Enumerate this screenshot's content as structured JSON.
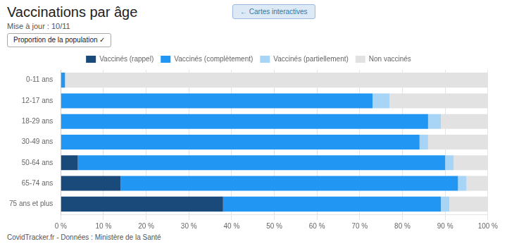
{
  "chart_data": {
    "type": "bar",
    "orientation": "horizontal",
    "stacked": true,
    "title": "Vaccinations par âge",
    "subtitle": "Mise à jour : 10/11",
    "annotations": [
      "Proportion de la population ✓",
      "← Cartes interactives",
      "CovidTracker.fr - Données  : Ministère de la Santé"
    ],
    "categories": [
      "0-11 ans",
      "12-17 ans",
      "18-29 ans",
      "30-49 ans",
      "50-64 ans",
      "65-74 ans",
      "75 ans et plus"
    ],
    "series": [
      {
        "name": "Vaccinés (rappel)",
        "color": "#1a4a7a",
        "values": [
          0,
          0,
          0,
          0,
          4,
          14,
          38
        ]
      },
      {
        "name": "Vaccinés (complètement)",
        "color": "#2196f3",
        "values": [
          1,
          73,
          86,
          84,
          86,
          79,
          51
        ]
      },
      {
        "name": "Vaccinés (partiellement)",
        "color": "#a8d4f5",
        "values": [
          0,
          4,
          3,
          2,
          2,
          2,
          2
        ]
      },
      {
        "name": "Non vaccinés",
        "color": "#e2e2e2",
        "values": [
          99,
          23,
          11,
          14,
          8,
          5,
          9
        ]
      }
    ],
    "xlim": [
      0,
      100
    ],
    "xticks": [
      {
        "value": 0,
        "label": "0 %"
      },
      {
        "value": 10,
        "label": "10 %"
      },
      {
        "value": 20,
        "label": "20 %"
      },
      {
        "value": 30,
        "label": "30 %"
      },
      {
        "value": 40,
        "label": "40 %"
      },
      {
        "value": 50,
        "label": "50 %"
      },
      {
        "value": 60,
        "label": "60 %"
      },
      {
        "value": 70,
        "label": "70 %"
      },
      {
        "value": 80,
        "label": "80 %"
      },
      {
        "value": 90,
        "label": "90 %"
      },
      {
        "value": 100,
        "label": "100 %"
      }
    ],
    "grid": true,
    "legend": "top"
  }
}
